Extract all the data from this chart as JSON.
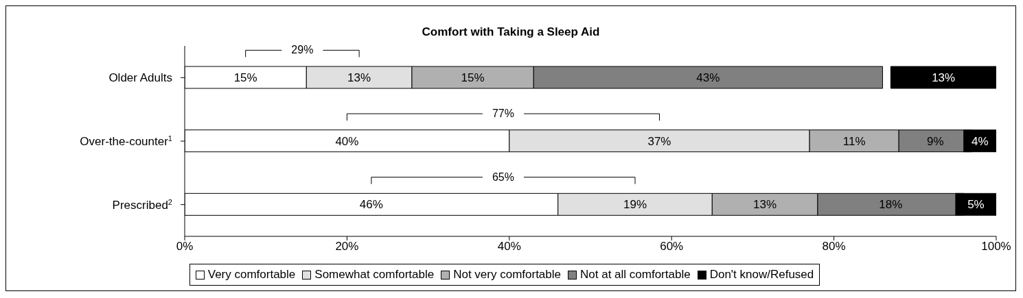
{
  "chart_data": {
    "type": "bar",
    "orientation": "horizontal",
    "title": "Comfort with Taking a Sleep Aid",
    "categories": [
      "Older Adults",
      "Over-the-counter$^{1}$",
      "Prescribed$^{2}$"
    ],
    "series": [
      {
        "name": "Very comfortable",
        "color": "#ffffff",
        "values": [
          15,
          40,
          46
        ],
        "base": [
          0,
          0,
          0
        ],
        "value_labels": [
          "15%",
          "40%",
          "46%"
        ]
      },
      {
        "name": "Somewhat comfortable",
        "color": "#e0e0e0",
        "values": [
          13,
          37,
          19
        ],
        "base": [
          15,
          40,
          46
        ],
        "value_labels": [
          "13%",
          "37%",
          "19%"
        ]
      },
      {
        "name": "Not very comfortable",
        "color": "#b0b0b0",
        "values": [
          15,
          11,
          13
        ],
        "base": [
          28,
          77,
          65
        ],
        "value_labels": [
          "15%",
          "11%",
          "13%"
        ]
      },
      {
        "name": "Not at all comfortable",
        "color": "#808080",
        "values": [
          43,
          9,
          18
        ],
        "base": [
          43,
          88,
          78
        ],
        "value_labels": [
          "43%",
          "9%",
          "18%"
        ]
      },
      {
        "name": "Don't know/Refused",
        "color": "#000000",
        "values": [
          13,
          4,
          5
        ],
        "base": [
          87,
          96,
          95
        ],
        "value_labels": [
          "13%",
          "4%",
          "5%"
        ]
      }
    ],
    "annotations": [
      "29%",
      "77%",
      "65%"
    ],
    "xlim": [
      0,
      100
    ],
    "xticks": [
      {
        "value": 0,
        "label": "0%"
      },
      {
        "value": 20,
        "label": "20%"
      },
      {
        "value": 40,
        "label": "40%"
      },
      {
        "value": 60,
        "label": "60%"
      },
      {
        "value": 80,
        "label": "80%"
      },
      {
        "value": 100,
        "label": "100%"
      }
    ],
    "grid": false,
    "legend": "bottom"
  }
}
